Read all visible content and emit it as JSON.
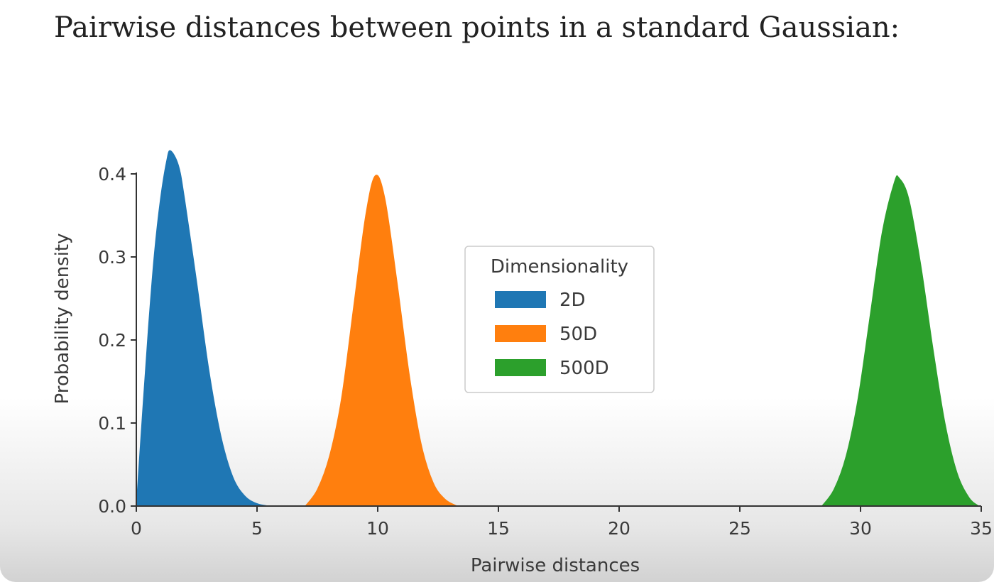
{
  "header": {
    "title": "Pairwise distances between points in a standard Gaussian:"
  },
  "chart_data": {
    "type": "area",
    "xlabel": "Pairwise distances",
    "ylabel": "Probability density",
    "xlim": [
      0,
      35
    ],
    "ylim": [
      0,
      0.4
    ],
    "x_ticks": [
      0,
      5,
      10,
      15,
      20,
      25,
      30,
      35
    ],
    "x_tick_labels": [
      "0",
      "5",
      "10",
      "15",
      "20",
      "25",
      "30",
      "35"
    ],
    "y_ticks": [
      0.0,
      0.1,
      0.2,
      0.3,
      0.4
    ],
    "y_tick_labels": [
      "0.0",
      "0.1",
      "0.2",
      "0.3",
      "0.4"
    ],
    "grid": false,
    "legend": {
      "title": "Dimensionality",
      "placement": "center"
    },
    "series": [
      {
        "name": "2D",
        "color": "#1f77b4",
        "x": [
          0,
          0.25,
          0.5,
          0.75,
          1.0,
          1.25,
          1.41,
          1.75,
          2.0,
          2.5,
          3.0,
          3.5,
          4.0,
          4.5,
          5.0,
          5.5
        ],
        "y": [
          0,
          0.11,
          0.215,
          0.305,
          0.37,
          0.415,
          0.428,
          0.41,
          0.37,
          0.27,
          0.165,
          0.085,
          0.035,
          0.012,
          0.003,
          0.0
        ]
      },
      {
        "name": "50D",
        "color": "#ff7f0e",
        "x": [
          7.0,
          7.5,
          8.0,
          8.5,
          9.0,
          9.5,
          9.9,
          10.3,
          10.8,
          11.3,
          11.8,
          12.3,
          12.8,
          13.3
        ],
        "y": [
          0.0,
          0.02,
          0.06,
          0.13,
          0.24,
          0.35,
          0.398,
          0.37,
          0.27,
          0.16,
          0.075,
          0.028,
          0.008,
          0.0
        ]
      },
      {
        "name": "500D",
        "color": "#2ca02c",
        "x": [
          28.4,
          28.9,
          29.4,
          29.9,
          30.4,
          30.9,
          31.4,
          31.6,
          32.0,
          32.5,
          33.0,
          33.5,
          34.0,
          34.5,
          34.9
        ],
        "y": [
          0.0,
          0.02,
          0.06,
          0.13,
          0.23,
          0.33,
          0.39,
          0.395,
          0.37,
          0.29,
          0.19,
          0.1,
          0.04,
          0.01,
          0.0
        ]
      }
    ]
  }
}
